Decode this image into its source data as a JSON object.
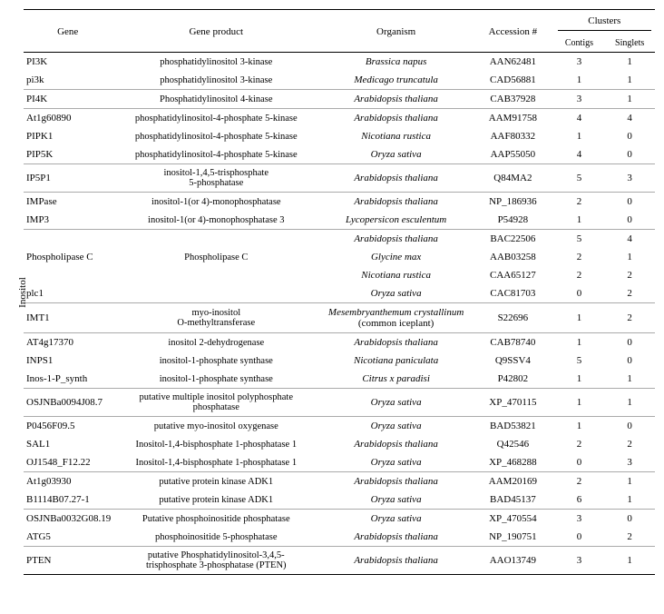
{
  "side_label": "Inositol",
  "headers": {
    "gene": "Gene",
    "product": "Gene product",
    "organism": "Organism",
    "accession": "Accession   #",
    "clusters": "Clusters",
    "contigs": "Contigs",
    "singlets": "Singlets"
  },
  "rows": [
    {
      "gene": "PI3K",
      "product": "phosphatidylinositol 3-kinase",
      "organism": "Brassica napus",
      "org_italic": true,
      "acc": "AAN62481",
      "contigs": "3",
      "singlets": "1",
      "sep": false
    },
    {
      "gene": "pi3k",
      "product": "phosphatidylinositol 3-kinase",
      "organism": "Medicago truncatula",
      "org_italic": true,
      "acc": "CAD56881",
      "contigs": "1",
      "singlets": "1",
      "sep": true
    },
    {
      "gene": "PI4K",
      "product": "Phosphatidylinositol 4-kinase",
      "organism": "Arabidopsis thaliana",
      "org_italic": true,
      "acc": "CAB37928",
      "contigs": "3",
      "singlets": "1",
      "sep": true
    },
    {
      "gene": "At1g60890",
      "product": "phosphatidylinositol-4-phosphate 5-kinase",
      "organism": "Arabidopsis thaliana",
      "org_italic": true,
      "acc": "AAM91758",
      "contigs": "4",
      "singlets": "4",
      "sep": false
    },
    {
      "gene": "PIPK1",
      "product": "phosphatidylinositol-4-phosphate 5-kinase",
      "organism": "Nicotiana rustica",
      "org_italic": true,
      "acc": "AAF80332",
      "contigs": "1",
      "singlets": "0",
      "sep": false
    },
    {
      "gene": "PIP5K",
      "product": "phosphatidylinositol-4-phosphate 5-kinase",
      "organism": "Oryza sativa",
      "org_italic": true,
      "acc": "AAP55050",
      "contigs": "4",
      "singlets": "0",
      "sep": true
    },
    {
      "gene": "IP5P1",
      "product": "inositol-1,4,5-trisphosphate\n5-phosphatase",
      "organism": "Arabidopsis thaliana",
      "org_italic": true,
      "acc": "Q84MA2",
      "contigs": "5",
      "singlets": "3",
      "sep": true
    },
    {
      "gene": "IMPase",
      "product": "inositol-1(or 4)-monophosphatase",
      "organism": "Arabidopsis thaliana",
      "org_italic": true,
      "acc": "NP_186936",
      "contigs": "2",
      "singlets": "0",
      "sep": false
    },
    {
      "gene": "IMP3",
      "product": "inositol-1(or 4)-monophosphatase 3",
      "organism": "Lycopersicon esculentum",
      "org_italic": true,
      "acc": "P54928",
      "contigs": "1",
      "singlets": "0",
      "sep": true
    },
    {
      "gene": "",
      "product": "",
      "organism": "Arabidopsis thaliana",
      "org_italic": true,
      "acc": "BAC22506",
      "contigs": "5",
      "singlets": "4",
      "sep": false
    },
    {
      "gene": "Phospholipase C",
      "product": "Phospholipase C",
      "organism": "Glycine max",
      "org_italic": true,
      "acc": "AAB03258",
      "contigs": "2",
      "singlets": "1",
      "sep": false
    },
    {
      "gene": "",
      "product": "",
      "organism": "Nicotiana rustica",
      "org_italic": true,
      "acc": "CAA65127",
      "contigs": "2",
      "singlets": "2",
      "sep": false
    },
    {
      "gene": "plc1",
      "product": "",
      "organism": "Oryza sativa",
      "org_italic": true,
      "acc": "CAC81703",
      "contigs": "0",
      "singlets": "2",
      "sep": true
    },
    {
      "gene": "IMT1",
      "product": "myo-inositol\nO-methyltransferase",
      "organism": "Mesembryanthemum crystallinum\n(common iceplant)",
      "org_italic": true,
      "org_italic_line2": false,
      "acc": "S22696",
      "contigs": "1",
      "singlets": "2",
      "sep": true
    },
    {
      "gene": "AT4g17370",
      "product": "inositol 2-dehydrogenase",
      "organism": "Arabidopsis thaliana",
      "org_italic": true,
      "acc": "CAB78740",
      "contigs": "1",
      "singlets": "0",
      "sep": false
    },
    {
      "gene": "INPS1",
      "product": "inositol-1-phosphate synthase",
      "organism": "Nicotiana paniculata",
      "org_italic": true,
      "acc": "Q9SSV4",
      "contigs": "5",
      "singlets": "0",
      "sep": false
    },
    {
      "gene": "Inos-1-P_synth",
      "product": "inositol-1-phosphate synthase",
      "organism": "Citrus x paradisi",
      "org_italic": true,
      "acc": "P42802",
      "contigs": "1",
      "singlets": "1",
      "sep": true
    },
    {
      "gene": "OSJNBa0094J08.7",
      "product": "putative multiple inositol polyphosphate\nphosphatase",
      "organism": "Oryza sativa",
      "org_italic": true,
      "acc": "XP_470115",
      "contigs": "1",
      "singlets": "1",
      "sep": true
    },
    {
      "gene": "P0456F09.5",
      "product": "putative myo-inositol oxygenase",
      "organism": "Oryza sativa",
      "org_italic": true,
      "acc": "BAD53821",
      "contigs": "1",
      "singlets": "0",
      "sep": false
    },
    {
      "gene": "SAL1",
      "product": "Inositol-1,4-bisphosphate 1-phosphatase 1",
      "organism": "Arabidopsis thaliana",
      "org_italic": true,
      "acc": "Q42546",
      "contigs": "2",
      "singlets": "2",
      "sep": false
    },
    {
      "gene": "OJ1548_F12.22",
      "product": "Inositol-1,4-bisphosphate 1-phosphatase 1",
      "organism": "Oryza sativa",
      "org_italic": true,
      "acc": "XP_468288",
      "contigs": "0",
      "singlets": "3",
      "sep": true
    },
    {
      "gene": "At1g03930",
      "product": "putative protein kinase ADK1",
      "organism": "Arabidopsis thaliana",
      "org_italic": true,
      "acc": "AAM20169",
      "contigs": "2",
      "singlets": "1",
      "sep": false
    },
    {
      "gene": "B1114B07.27-1",
      "product": "putative protein kinase ADK1",
      "organism": "Oryza sativa",
      "org_italic": true,
      "acc": "BAD45137",
      "contigs": "6",
      "singlets": "1",
      "sep": true
    },
    {
      "gene": "OSJNBa0032G08.19",
      "product": "Putative phosphoinositide phosphatase",
      "organism": "Oryza sativa",
      "org_italic": true,
      "acc": "XP_470554",
      "contigs": "3",
      "singlets": "0",
      "sep": false
    },
    {
      "gene": "ATG5",
      "product": "phosphoinositide 5-phosphatase",
      "organism": "Arabidopsis thaliana",
      "org_italic": true,
      "acc": "NP_190751",
      "contigs": "0",
      "singlets": "2",
      "sep": true
    },
    {
      "gene": "PTEN",
      "product": "putative Phosphatidylinositol-3,4,5-\ntrisphosphate 3-phosphatase (PTEN)",
      "organism": "Arabidopsis thaliana",
      "org_italic": true,
      "acc": "AAO13749",
      "contigs": "3",
      "singlets": "1",
      "sep": true
    }
  ]
}
